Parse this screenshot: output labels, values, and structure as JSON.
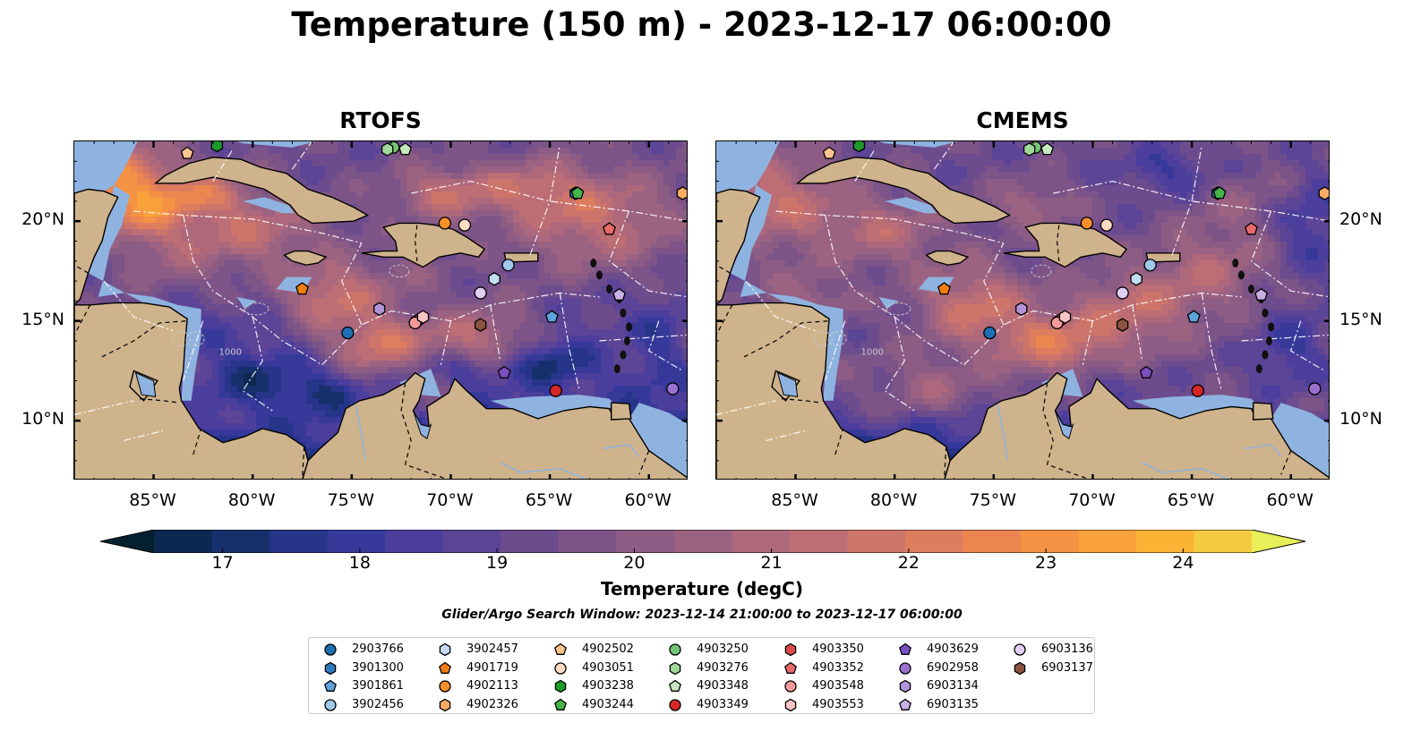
{
  "title": "Temperature (150 m) - 2023-12-17 06:00:00",
  "panels": [
    {
      "title": "RTOFS",
      "model": "rtofs"
    },
    {
      "title": "CMEMS",
      "model": "cmems"
    }
  ],
  "map": {
    "extent": {
      "lon_min": -89,
      "lon_max": -58,
      "lat_min": 7,
      "lat_max": 24
    },
    "x_ticks": [
      "85°W",
      "80°W",
      "75°W",
      "70°W",
      "65°W",
      "60°W"
    ],
    "y_ticks": [
      "20°N",
      "15°N",
      "10°N"
    ],
    "contour_label": "1000",
    "colors": {
      "land": "#cfb38c",
      "shallow": "#8fb3e0",
      "coast": "#000000",
      "boundary": "#000000"
    }
  },
  "colorbar": {
    "label": "Temperature (degC)",
    "min": 16.5,
    "max": 24.5,
    "step": 0.5,
    "ticks": [
      "17",
      "18",
      "19",
      "20",
      "21",
      "22",
      "23",
      "24"
    ],
    "colors": [
      "#04202f",
      "#0b2950",
      "#16306c",
      "#263489",
      "#37399a",
      "#4b3e9c",
      "#5c4496",
      "#6d4c8e",
      "#7d5488",
      "#8c5c84",
      "#9c6282",
      "#ad687c",
      "#bd6e74",
      "#cd756a",
      "#de7d5e",
      "#ec8650",
      "#f59243",
      "#f9a13a",
      "#fbb336",
      "#f4cb3f",
      "#e8ef58"
    ]
  },
  "search_window": "Glider/Argo Search Window: 2023-12-14 21:00:00 to 2023-12-17 06:00:00",
  "legend": [
    {
      "id": "2903766",
      "marker": "circle",
      "color": "#1f6fb4"
    },
    {
      "id": "3901300",
      "marker": "hexagon",
      "color": "#2d7bc0"
    },
    {
      "id": "3901861",
      "marker": "pentagon",
      "color": "#5ea3db"
    },
    {
      "id": "3902456",
      "marker": "circle",
      "color": "#9fc8ea"
    },
    {
      "id": "3902457",
      "marker": "hexagon",
      "color": "#c3ddf3"
    },
    {
      "id": "4901719",
      "marker": "pentagon",
      "color": "#f07d0f"
    },
    {
      "id": "4902113",
      "marker": "circle",
      "color": "#f6902a"
    },
    {
      "id": "4902326",
      "marker": "hexagon",
      "color": "#f9ac64"
    },
    {
      "id": "4902502",
      "marker": "pentagon",
      "color": "#fbc48f"
    },
    {
      "id": "4903051",
      "marker": "circle",
      "color": "#fddcc1"
    },
    {
      "id": "4903238",
      "marker": "hexagon",
      "color": "#1e9a2b"
    },
    {
      "id": "4903244",
      "marker": "pentagon",
      "color": "#45b449"
    },
    {
      "id": "4903250",
      "marker": "circle",
      "color": "#74c476"
    },
    {
      "id": "4903276",
      "marker": "hexagon",
      "color": "#a1d99b"
    },
    {
      "id": "4903348",
      "marker": "pentagon",
      "color": "#c7e9c0"
    },
    {
      "id": "4903349",
      "marker": "circle",
      "color": "#d62728"
    },
    {
      "id": "4903350",
      "marker": "hexagon",
      "color": "#de4a4a"
    },
    {
      "id": "4903352",
      "marker": "pentagon",
      "color": "#ea6a6a"
    },
    {
      "id": "4903548",
      "marker": "circle",
      "color": "#f59a9a"
    },
    {
      "id": "4903553",
      "marker": "hexagon",
      "color": "#fac3c3"
    },
    {
      "id": "4903629",
      "marker": "pentagon",
      "color": "#7b4fbf"
    },
    {
      "id": "6902958",
      "marker": "circle",
      "color": "#9a70cf"
    },
    {
      "id": "6903134",
      "marker": "hexagon",
      "color": "#b394db"
    },
    {
      "id": "6903135",
      "marker": "pentagon",
      "color": "#c9b0e6"
    },
    {
      "id": "6903136",
      "marker": "circle",
      "color": "#e2d0f3"
    },
    {
      "id": "6903137",
      "marker": "hexagon",
      "color": "#8c5440"
    }
  ],
  "floats": [
    {
      "id": "2903766",
      "lon": -75.2,
      "lat": 14.4
    },
    {
      "id": "3901300",
      "lon": -63.7,
      "lat": 21.4
    },
    {
      "id": "3901861",
      "lon": -64.9,
      "lat": 15.2
    },
    {
      "id": "3902456",
      "lon": -67.1,
      "lat": 17.8
    },
    {
      "id": "3902457",
      "lon": -67.8,
      "lat": 17.1
    },
    {
      "id": "4901719",
      "lon": -77.5,
      "lat": 16.6
    },
    {
      "id": "4902113",
      "lon": -70.3,
      "lat": 19.9
    },
    {
      "id": "4902326",
      "lon": -58.3,
      "lat": 21.4
    },
    {
      "id": "4902502",
      "lon": -83.3,
      "lat": 23.4
    },
    {
      "id": "4903051",
      "lon": -69.3,
      "lat": 19.8
    },
    {
      "id": "4903238",
      "lon": -81.8,
      "lat": 23.8
    },
    {
      "id": "4903244",
      "lon": -63.6,
      "lat": 21.4
    },
    {
      "id": "4903250",
      "lon": -72.9,
      "lat": 23.7
    },
    {
      "id": "4903276",
      "lon": -73.2,
      "lat": 23.6
    },
    {
      "id": "4903348",
      "lon": -72.3,
      "lat": 23.6
    },
    {
      "id": "4903349",
      "lon": -64.7,
      "lat": 11.5
    },
    {
      "id": "4903350",
      "lon": -71.7,
      "lat": 15.0
    },
    {
      "id": "4903352",
      "lon": -62.0,
      "lat": 19.6
    },
    {
      "id": "4903548",
      "lon": -71.8,
      "lat": 14.9
    },
    {
      "id": "4903553",
      "lon": -71.4,
      "lat": 15.2
    },
    {
      "id": "4903629",
      "lon": -67.3,
      "lat": 12.4
    },
    {
      "id": "6902958",
      "lon": -58.8,
      "lat": 11.6
    },
    {
      "id": "6903134",
      "lon": -73.6,
      "lat": 15.6
    },
    {
      "id": "6903135",
      "lon": -61.5,
      "lat": 16.3
    },
    {
      "id": "6903136",
      "lon": -68.5,
      "lat": 16.4
    },
    {
      "id": "6903137",
      "lon": -68.5,
      "lat": 14.8
    }
  ]
}
